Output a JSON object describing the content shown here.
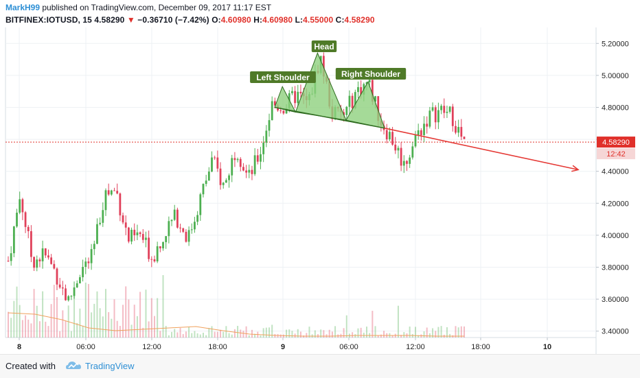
{
  "header": {
    "author": "MarkH99",
    "published_text": "published on TradingView.com, December 09, 2017 11:17 EST",
    "symbol": "BITFINEX:IOTUSD, 15",
    "last": "4.58290",
    "arrow": "▼",
    "change": "−0.36710 (−7.42%)",
    "o_label": "O:",
    "o": "4.60980",
    "h_label": "H:",
    "h": "4.60980",
    "l_label": "L:",
    "l": "4.55000",
    "c_label": "C:",
    "c": "4.58290"
  },
  "footer": {
    "created_with": "Created with",
    "brand": "TradingView"
  },
  "colors": {
    "up": "#4caf50",
    "down": "#e0405a",
    "pattern_fill": "#8fd17e",
    "pattern_stroke": "#2e6b1f",
    "label_bg": "#4f7a28",
    "trend_arrow": "#e53935",
    "volume_ma": "#f0a15c",
    "price_line": "#e0302a"
  },
  "chart_data": {
    "type": "candlestick",
    "y_axis": {
      "ticks": [
        "5.20000",
        "5.00000",
        "4.80000",
        "4.60000",
        "4.40000",
        "4.20000",
        "4.00000",
        "3.80000",
        "3.60000",
        "3.40000"
      ],
      "range": [
        3.36,
        5.3
      ]
    },
    "x_axis": {
      "ticks": [
        "8",
        "06:00",
        "12:00",
        "18:00",
        "9",
        "06:00",
        "12:00",
        "18:00",
        "10"
      ],
      "bold_ticks": [
        "8",
        "9",
        "10"
      ]
    },
    "last_price": {
      "value": 4.5829,
      "label": "4.58290",
      "countdown": "12:42"
    },
    "annotations": {
      "left_shoulder": "Left Shoulder",
      "head": "Head",
      "right_shoulder": "Right Shoulder"
    },
    "pattern": {
      "neckline": [
        [
          0,
          4.8
        ],
        [
          1.0,
          4.67
        ]
      ],
      "points": [
        {
          "name": "ls_start",
          "t": 0.0,
          "y": 4.8
        },
        {
          "name": "ls_peak",
          "t": 0.07,
          "y": 4.93
        },
        {
          "name": "trough1",
          "t": 0.19,
          "y": 4.77
        },
        {
          "name": "head",
          "t": 0.39,
          "y": 5.14
        },
        {
          "name": "trough2",
          "t": 0.65,
          "y": 4.72
        },
        {
          "name": "rs_peak",
          "t": 0.85,
          "y": 4.96
        },
        {
          "name": "rs_end",
          "t": 1.0,
          "y": 4.67
        }
      ]
    },
    "trend_projection": {
      "from": 4.67,
      "to": 4.41
    },
    "price_path": [
      3.84,
      4.25,
      3.84,
      3.88,
      3.76,
      3.58,
      3.78,
      3.86,
      4.26,
      4.28,
      3.97,
      4.0,
      3.86,
      4.02,
      4.12,
      3.98,
      4.23,
      4.47,
      4.3,
      4.56,
      4.35,
      4.52,
      4.82,
      4.8,
      4.88,
      4.82,
      5.12,
      4.76,
      4.75,
      4.9,
      4.96,
      4.72,
      4.6,
      4.44,
      4.62,
      4.74,
      4.78,
      4.75,
      4.56
    ],
    "volume_ma_path": [
      0.36,
      0.34,
      0.26,
      0.14,
      0.1,
      0.12,
      0.14,
      0.16,
      0.1,
      0.05,
      0.03,
      0.02,
      0.02,
      0.03,
      0.03,
      0.03,
      0.02,
      0.02
    ]
  }
}
